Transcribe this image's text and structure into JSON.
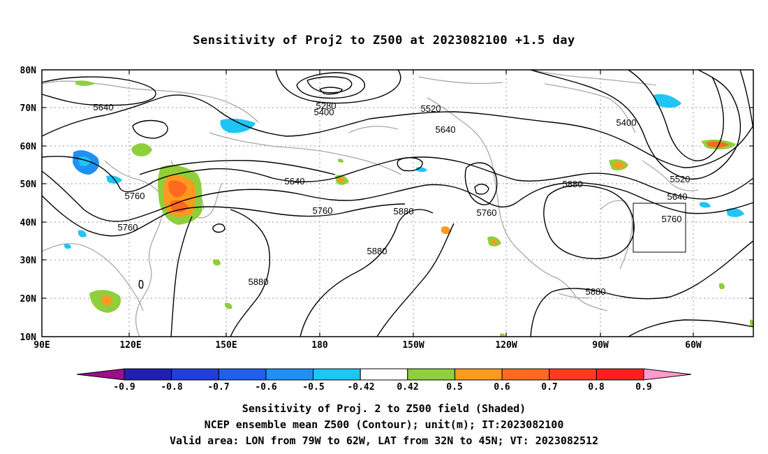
{
  "title": "Sensitivity of Proj2 to Z500 at 2023082100 +1.5 day",
  "axes": {
    "lon_labels": [
      "90E",
      "120E",
      "150E",
      "180",
      "150W",
      "120W",
      "90W",
      "60W"
    ],
    "lat_labels": [
      "80N",
      "70N",
      "60N",
      "50N",
      "40N",
      "30N",
      "20N",
      "10N"
    ]
  },
  "contour_labels": [
    "5640",
    "5280",
    "5400",
    "5520",
    "5640",
    "5400",
    "5640",
    "5520",
    "5640",
    "5880",
    "5760",
    "5880",
    "5760",
    "5760",
    "5760",
    "5880",
    "5880",
    "5880"
  ],
  "colorbar": {
    "tick_labels": [
      "-0.9",
      "-0.8",
      "-0.7",
      "-0.6",
      "-0.5",
      "-0.42",
      "0.42",
      "0.5",
      "0.6",
      "0.7",
      "0.8",
      "0.9"
    ],
    "colors": [
      "#9a0f8a",
      "#1f1fb0",
      "#1f3fd8",
      "#1f5fea",
      "#1f8ff2",
      "#1fc5f5",
      "#ffffff",
      "#8fcf3c",
      "#ff9a1f",
      "#ff6a1f",
      "#ff3a1f",
      "#ff1f1f",
      "#ff9acc"
    ]
  },
  "footer": {
    "line1": "Sensitivity of Proj. 2 to Z500 field (Shaded)",
    "line2": "NCEP ensemble mean Z500 (Contour); unit(m); IT:2023082100",
    "line3": "Valid area: LON from 79W to 62W, LAT from 32N to 45N; VT: 2023082512"
  }
}
